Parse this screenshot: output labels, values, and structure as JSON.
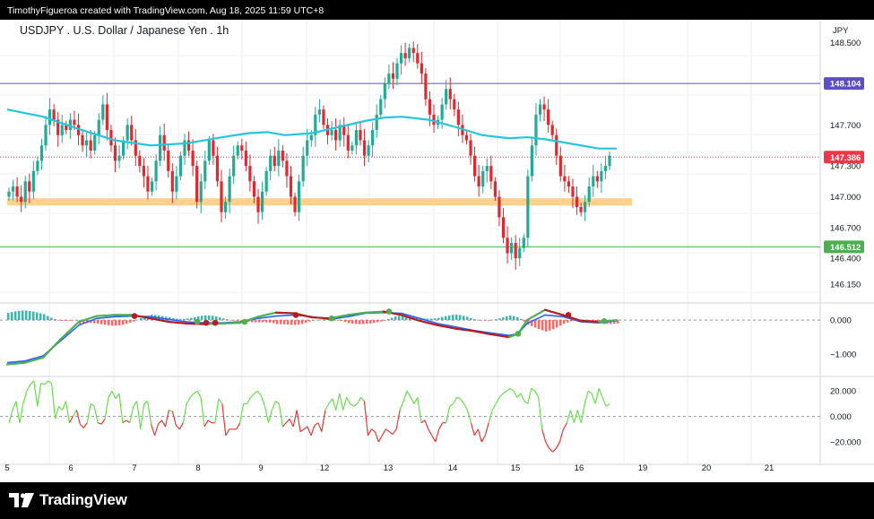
{
  "header": {
    "credit": "TimothyFigueroa created with TradingView.com, Aug 18, 2025 11:59 UTC+8"
  },
  "brand": {
    "name": "TradingView"
  },
  "colors": {
    "up": "#22ab94",
    "down": "#e0282e",
    "ma": "#26c6da",
    "resistance_line": "#5b4fc5",
    "support_line": "#4caf50",
    "zone": "#ffd18a",
    "current_price": "#f23645",
    "macd_fast": "#2962ff",
    "macd_slow_up": "#4caf50",
    "macd_slow_down": "#b71c1c",
    "osc_up": "#66e04a",
    "osc_down": "#e53935"
  },
  "chart_data": {
    "type": "candlestick",
    "title": "USDJPY . U.S. Dollar / Japanese Yen . 1h",
    "currency": "JPY",
    "price_ticks": [
      "148.500",
      "147.700",
      "147.300",
      "147.000",
      "146.700",
      "146.400",
      "146.150"
    ],
    "price_range": [
      146.0,
      148.55
    ],
    "x_ticks": [
      "5",
      "6",
      "7",
      "8",
      "9",
      "12",
      "13",
      "14",
      "15",
      "16",
      "19",
      "20",
      "21"
    ],
    "horizontal_levels": [
      {
        "label": "148.104",
        "price": 148.104,
        "role": "resistance"
      },
      {
        "label": "146.512",
        "price": 146.512,
        "role": "support"
      }
    ],
    "current_price": {
      "label": "147.386",
      "price": 147.386
    },
    "zone": {
      "price": 146.95
    },
    "candle_closes": [
      147.05,
      147.1,
      147.0,
      146.95,
      147.15,
      147.05,
      147.25,
      147.35,
      147.5,
      147.7,
      147.85,
      147.75,
      147.6,
      147.7,
      147.65,
      147.75,
      147.7,
      147.6,
      147.5,
      147.55,
      147.45,
      147.6,
      147.75,
      147.9,
      147.65,
      147.5,
      147.35,
      147.4,
      147.55,
      147.7,
      147.55,
      147.4,
      147.3,
      147.2,
      147.05,
      147.15,
      147.35,
      147.6,
      147.45,
      147.25,
      147.05,
      147.2,
      147.4,
      147.55,
      147.45,
      147.3,
      146.95,
      147.15,
      147.35,
      147.55,
      147.4,
      147.15,
      146.85,
      146.95,
      147.2,
      147.4,
      147.5,
      147.45,
      147.3,
      147.15,
      147.0,
      146.85,
      147.05,
      147.25,
      147.4,
      147.3,
      147.45,
      147.35,
      147.2,
      147.0,
      146.85,
      147.15,
      147.4,
      147.55,
      147.6,
      147.8,
      147.85,
      147.7,
      147.6,
      147.65,
      147.55,
      147.7,
      147.6,
      147.45,
      147.5,
      147.65,
      147.55,
      147.4,
      147.5,
      147.65,
      147.8,
      147.95,
      148.1,
      148.2,
      148.15,
      148.3,
      148.4,
      148.35,
      148.45,
      148.4,
      148.3,
      148.2,
      147.95,
      147.8,
      147.7,
      147.75,
      147.9,
      148.05,
      147.95,
      147.85,
      147.7,
      147.6,
      147.55,
      147.4,
      147.2,
      147.1,
      147.25,
      147.3,
      147.15,
      147.0,
      146.8,
      146.6,
      146.45,
      146.55,
      146.4,
      146.5,
      146.6,
      147.2,
      147.5,
      147.8,
      147.9,
      147.85,
      147.7,
      147.6,
      147.4,
      147.2,
      147.15,
      147.1,
      147.0,
      146.9,
      146.85,
      146.95,
      147.1,
      147.2,
      147.15,
      147.25,
      147.3,
      147.4
    ],
    "ma_points": [
      [
        0,
        147.85
      ],
      [
        40,
        147.78
      ],
      [
        80,
        147.66
      ],
      [
        120,
        147.55
      ],
      [
        160,
        147.5
      ],
      [
        200,
        147.52
      ],
      [
        240,
        147.58
      ],
      [
        270,
        147.62
      ],
      [
        290,
        147.63
      ],
      [
        310,
        147.6
      ],
      [
        340,
        147.62
      ],
      [
        360,
        147.66
      ],
      [
        400,
        147.74
      ],
      [
        420,
        147.77
      ],
      [
        440,
        147.78
      ],
      [
        470,
        147.75
      ],
      [
        500,
        147.68
      ],
      [
        530,
        147.6
      ],
      [
        560,
        147.57
      ],
      [
        580,
        147.58
      ],
      [
        600,
        147.56
      ],
      [
        640,
        147.5
      ],
      [
        660,
        147.47
      ],
      [
        680,
        147.47
      ]
    ],
    "macd": {
      "fast": [
        [
          0,
          -1.25
        ],
        [
          20,
          -1.2
        ],
        [
          40,
          -1.05
        ],
        [
          60,
          -0.6
        ],
        [
          80,
          -0.15
        ],
        [
          100,
          0.05
        ],
        [
          120,
          0.1
        ],
        [
          140,
          0.12
        ],
        [
          160,
          0.1
        ],
        [
          180,
          0.02
        ],
        [
          200,
          -0.05
        ],
        [
          220,
          -0.08
        ],
        [
          240,
          -0.08
        ],
        [
          260,
          -0.05
        ],
        [
          280,
          0.05
        ],
        [
          300,
          0.12
        ],
        [
          320,
          0.15
        ],
        [
          340,
          0.1
        ],
        [
          360,
          0.02
        ],
        [
          380,
          0.1
        ],
        [
          400,
          0.2
        ],
        [
          420,
          0.22
        ],
        [
          440,
          0.2
        ],
        [
          460,
          0.05
        ],
        [
          480,
          -0.1
        ],
        [
          500,
          -0.2
        ],
        [
          520,
          -0.3
        ],
        [
          540,
          -0.38
        ],
        [
          560,
          -0.45
        ],
        [
          570,
          -0.4
        ],
        [
          580,
          -0.1
        ],
        [
          600,
          0.15
        ],
        [
          620,
          0.1
        ],
        [
          640,
          -0.05
        ],
        [
          660,
          -0.08
        ],
        [
          680,
          -0.02
        ]
      ],
      "slow": [
        [
          0,
          -1.3
        ],
        [
          20,
          -1.25
        ],
        [
          40,
          -1.1
        ],
        [
          60,
          -0.55
        ],
        [
          80,
          -0.05
        ],
        [
          100,
          0.12
        ],
        [
          120,
          0.15
        ],
        [
          140,
          0.15
        ],
        [
          160,
          0.05
        ],
        [
          180,
          -0.05
        ],
        [
          200,
          -0.1
        ],
        [
          220,
          -0.12
        ],
        [
          240,
          -0.1
        ],
        [
          260,
          -0.08
        ],
        [
          280,
          0.1
        ],
        [
          300,
          0.22
        ],
        [
          320,
          0.2
        ],
        [
          340,
          0.08
        ],
        [
          360,
          0.05
        ],
        [
          380,
          0.15
        ],
        [
          400,
          0.22
        ],
        [
          420,
          0.25
        ],
        [
          440,
          0.15
        ],
        [
          460,
          -0.02
        ],
        [
          480,
          -0.15
        ],
        [
          500,
          -0.25
        ],
        [
          520,
          -0.32
        ],
        [
          540,
          -0.42
        ],
        [
          560,
          -0.5
        ],
        [
          570,
          -0.4
        ],
        [
          580,
          0.0
        ],
        [
          600,
          0.3
        ],
        [
          620,
          0.15
        ],
        [
          640,
          -0.02
        ],
        [
          660,
          -0.05
        ],
        [
          680,
          0.0
        ]
      ],
      "crosses": [
        [
          142,
          0.12
        ],
        [
          212,
          -0.05
        ],
        [
          222,
          -0.08
        ],
        [
          232,
          -0.08
        ],
        [
          265,
          -0.05
        ],
        [
          322,
          0.15
        ],
        [
          362,
          0.05
        ],
        [
          426,
          0.25
        ],
        [
          570,
          -0.4
        ],
        [
          626,
          0.15
        ],
        [
          666,
          -0.03
        ]
      ],
      "ticks": [
        "0.000",
        "−1.000"
      ],
      "range": [
        -1.55,
        0.45
      ]
    },
    "oscillator": {
      "values": [
        -5,
        5,
        12,
        -5,
        10,
        20,
        25,
        28,
        8,
        26,
        25,
        28,
        26,
        -2,
        8,
        5,
        12,
        -5,
        0,
        5,
        -6,
        -9,
        -5,
        10,
        8,
        -5,
        -6,
        -2,
        15,
        20,
        14,
        18,
        -5,
        -3,
        -5,
        8,
        12,
        -10,
        10,
        12,
        -6,
        -15,
        -6,
        -3,
        -8,
        5,
        4,
        -7,
        -10,
        -5,
        10,
        15,
        18,
        20,
        15,
        -8,
        -3,
        -5,
        -5,
        14,
        10,
        -15,
        -10,
        -10,
        -10,
        -5,
        10,
        10,
        15,
        18,
        20,
        16,
        8,
        -5,
        5,
        12,
        10,
        -8,
        -5,
        -2,
        -8,
        5,
        -12,
        -10,
        -8,
        -15,
        -7,
        -5,
        -12,
        5,
        10,
        14,
        5,
        18,
        5,
        15,
        10,
        8,
        10,
        15,
        12,
        -15,
        -10,
        -12,
        -20,
        -15,
        -10,
        -12,
        -14,
        -10,
        5,
        12,
        20,
        15,
        10,
        15,
        -5,
        -3,
        -10,
        -15,
        -20,
        -10,
        -5,
        -5,
        8,
        10,
        15,
        14,
        10,
        5,
        -5,
        -15,
        -10,
        -20,
        -15,
        -5,
        5,
        10,
        15,
        18,
        20,
        22,
        20,
        15,
        18,
        12,
        10,
        22,
        20,
        15,
        -10,
        -20,
        -25,
        -28,
        -25,
        -20,
        -10,
        -5,
        5,
        -5,
        5,
        -5,
        10,
        20,
        18,
        10,
        22,
        15,
        8,
        10
      ],
      "ticks": [
        "20.000",
        "0.000",
        "−20.000"
      ],
      "range": [
        -32,
        30
      ]
    }
  }
}
